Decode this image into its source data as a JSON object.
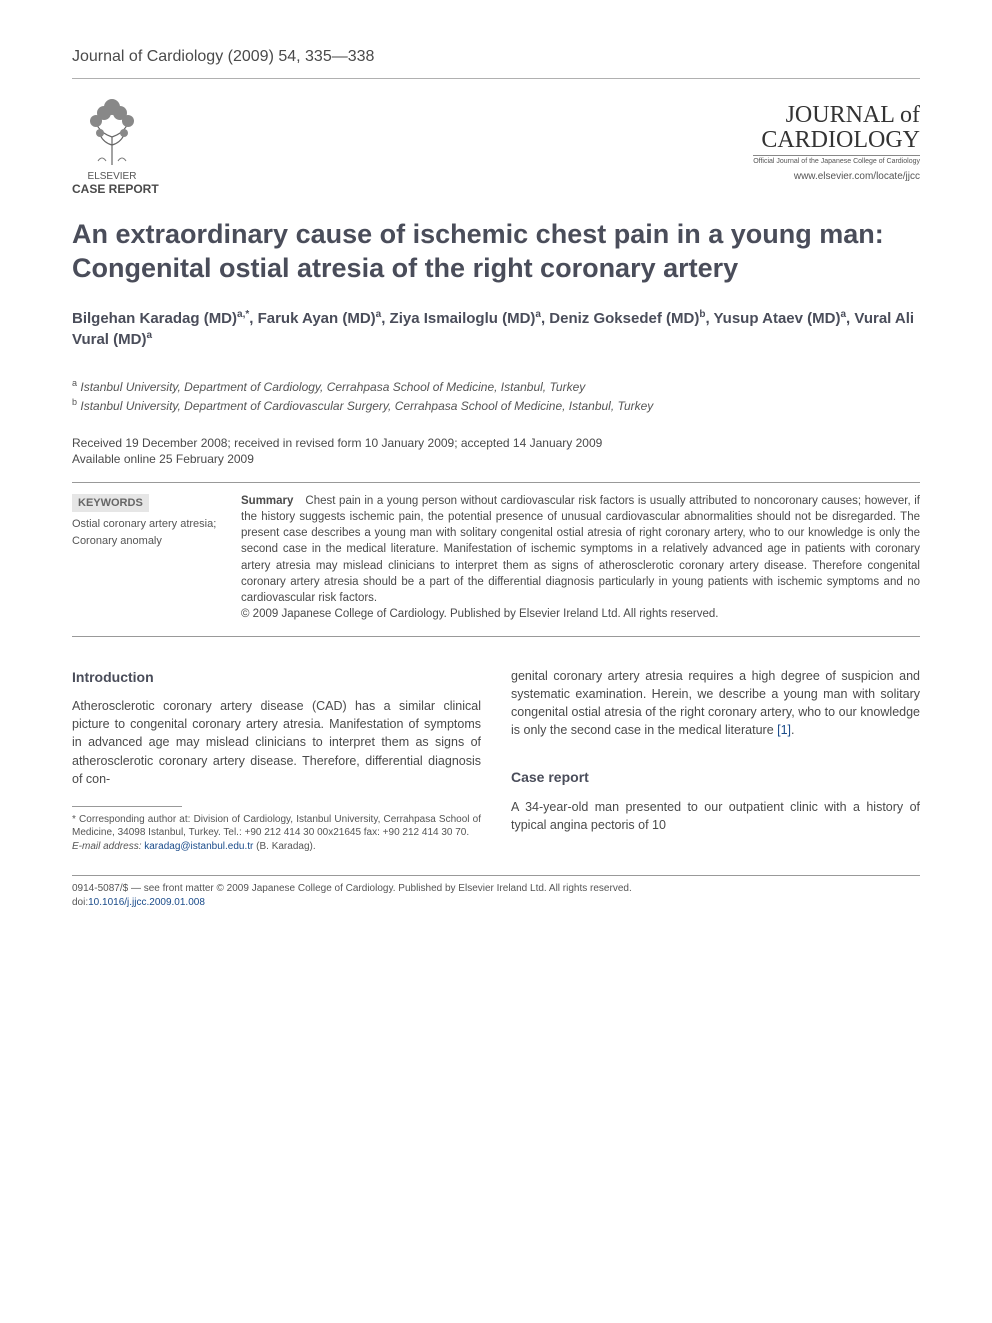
{
  "journal_citation": "Journal of Cardiology (2009) 54, 335—338",
  "publisher": {
    "name": "ELSEVIER"
  },
  "journal": {
    "name_line1": "JOURNAL of",
    "name_line2": "CARDIOLOGY",
    "subtitle": "Official Journal of the Japanese College of Cardiology",
    "url": "www.elsevier.com/locate/jjcc"
  },
  "article_type": "CASE REPORT",
  "title": "An extraordinary cause of ischemic chest pain in a young man: Congenital ostial atresia of the right coronary artery",
  "authors_html": "Bilgehan Karadag (MD)<sup>a,*</sup>, Faruk Ayan (MD)<sup>a</sup>, Ziya Ismailoglu (MD)<sup>a</sup>, Deniz Goksedef (MD)<sup>b</sup>, Yusup Ataev (MD)<sup>a</sup>, Vural Ali Vural (MD)<sup>a</sup>",
  "affiliations": [
    {
      "marker": "a",
      "text": "Istanbul University, Department of Cardiology, Cerrahpasa School of Medicine, Istanbul, Turkey"
    },
    {
      "marker": "b",
      "text": "Istanbul University, Department of Cardiovascular Surgery, Cerrahpasa School of Medicine, Istanbul, Turkey"
    }
  ],
  "dates": {
    "line1": "Received 19 December 2008; received in revised form 10 January 2009; accepted 14 January 2009",
    "line2": "Available online 25 February 2009"
  },
  "keywords": {
    "heading": "KEYWORDS",
    "items": [
      "Ostial coronary artery atresia;",
      "Coronary anomaly"
    ]
  },
  "summary": {
    "label": "Summary",
    "text": "Chest pain in a young person without cardiovascular risk factors is usually attributed to noncoronary causes; however, if the history suggests ischemic pain, the potential presence of unusual cardiovascular abnormalities should not be disregarded. The present case describes a young man with solitary congenital ostial atresia of right coronary artery, who to our knowledge is only the second case in the medical literature. Manifestation of ischemic symptoms in a relatively advanced age in patients with coronary artery atresia may mislead clinicians to interpret them as signs of atherosclerotic coronary artery disease. Therefore congenital coronary artery atresia should be a part of the differential diagnosis particularly in young patients with ischemic symptoms and no cardiovascular risk factors.",
    "copyright": "© 2009 Japanese College of Cardiology. Published by Elsevier Ireland Ltd. All rights reserved."
  },
  "sections": {
    "intro_heading": "Introduction",
    "intro_p1": "Atherosclerotic coronary artery disease (CAD) has a similar clinical picture to congenital coronary artery atresia. Manifestation of symptoms in advanced age may mislead clinicians to interpret them as signs of atherosclerotic coronary artery disease. Therefore, differential diagnosis of con-",
    "intro_p2_pre": "genital coronary artery atresia requires a high degree of suspicion and systematic examination. Herein, we describe a young man with solitary congenital ostial atresia of the right coronary artery, who to our knowledge is only the second case in the medical literature ",
    "intro_cite": "[1]",
    "intro_p2_post": ".",
    "case_heading": "Case report",
    "case_p1": "A 34-year-old man presented to our outpatient clinic with a history of typical angina pectoris of 10"
  },
  "footnote": {
    "corr": "* Corresponding author at: Division of Cardiology, Istanbul University, Cerrahpasa School of Medicine, 34098 Istanbul, Turkey. Tel.: +90 212 414 30 00x21645 fax: +90 212 414 30 70.",
    "email_label": "E-mail address:",
    "email": "karadag@istanbul.edu.tr",
    "email_suffix": " (B. Karadag)."
  },
  "bottom": {
    "line1": "0914-5087/$ — see front matter © 2009 Japanese College of Cardiology. Published by Elsevier Ireland Ltd. All rights reserved.",
    "doi_label": "doi:",
    "doi": "10.1016/j.jjcc.2009.01.008"
  },
  "colors": {
    "text": "#4a4a4a",
    "heading": "#4a4d5a",
    "link": "#1a4b8a",
    "rule": "#999999",
    "kw_bg": "#e6e6e6"
  },
  "fonts": {
    "body_size_pt": 12.5,
    "title_size_pt": 27,
    "authors_size_pt": 15,
    "summary_size_pt": 11.5,
    "footnote_size_pt": 10
  }
}
